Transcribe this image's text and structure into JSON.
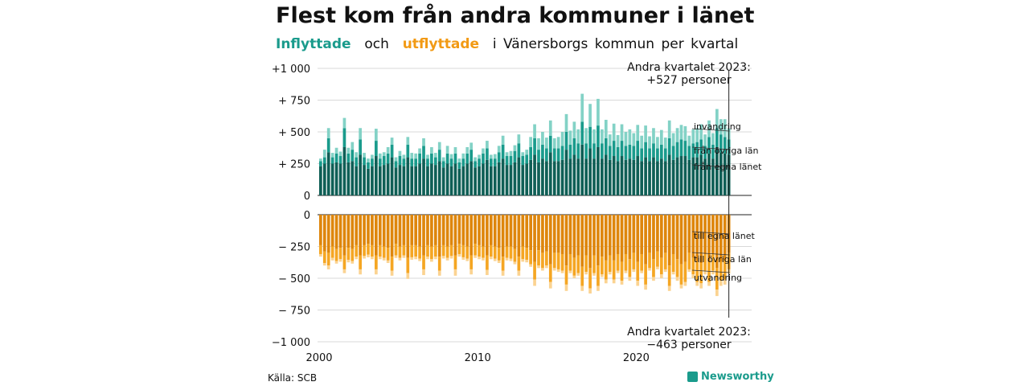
{
  "title": "Flest kom från andra kommuner i länet",
  "subtitle": {
    "in_word": "Inflyttade",
    "och": "och",
    "out_word": "utflyttade",
    "rest": "i Vänersborgs kommun per kvartal"
  },
  "source": "Källa: SCB",
  "brand": "Newsworthy",
  "colors": {
    "in_own": "#0f5f56",
    "in_other": "#1a9b8c",
    "in_imm": "#83d2c6",
    "out_own": "#de860c",
    "out_other": "#f5a623",
    "out_emi": "#fbd391"
  },
  "chart_data": {
    "type": "bar",
    "stacked": true,
    "x_start": "2000 Q1",
    "x_end": "2023 Q2",
    "x_ticks": [
      "2000",
      "2010",
      "2020"
    ],
    "y_ticks_top": [
      "+1 000",
      "+ 750",
      "+ 500",
      "+ 250",
      "0"
    ],
    "y_ticks_bottom": [
      "0",
      "− 250",
      "− 500",
      "− 750",
      "−1 000"
    ],
    "ylim_in": [
      0,
      1000
    ],
    "ylim_out": [
      -1000,
      0
    ],
    "annotation_top": {
      "line1": "Andra kvartalet 2023:",
      "line2": "+527 personer"
    },
    "annotation_bottom": {
      "line1": "Andra kvartalet 2023:",
      "line2": "−463 personer"
    },
    "series_labels_in": [
      "invandring",
      "från övriga län",
      "från egna länet"
    ],
    "series_labels_out": [
      "till egna länet",
      "till övriga län",
      "utvandring"
    ],
    "inflow_totals": [
      290,
      360,
      530,
      335,
      375,
      345,
      610,
      375,
      420,
      340,
      530,
      335,
      290,
      320,
      525,
      330,
      340,
      380,
      455,
      300,
      350,
      320,
      460,
      335,
      330,
      370,
      450,
      320,
      380,
      335,
      420,
      300,
      390,
      325,
      380,
      290,
      330,
      380,
      415,
      300,
      320,
      370,
      430,
      320,
      325,
      390,
      470,
      340,
      350,
      395,
      480,
      340,
      360,
      460,
      560,
      450,
      500,
      455,
      590,
      450,
      460,
      500,
      640,
      510,
      580,
      520,
      800,
      530,
      720,
      520,
      760,
      520,
      595,
      480,
      565,
      475,
      560,
      500,
      520,
      490,
      555,
      470,
      550,
      465,
      530,
      460,
      515,
      455,
      590,
      490,
      530,
      555,
      545,
      470,
      520,
      530,
      560,
      480,
      590,
      490,
      680,
      600,
      600,
      527
    ],
    "inflow_own": [
      230,
      250,
      340,
      250,
      260,
      250,
      380,
      260,
      270,
      230,
      320,
      240,
      210,
      230,
      310,
      230,
      240,
      250,
      300,
      220,
      240,
      230,
      300,
      230,
      230,
      250,
      290,
      230,
      250,
      240,
      270,
      220,
      250,
      230,
      250,
      210,
      230,
      250,
      270,
      220,
      230,
      250,
      280,
      230,
      230,
      260,
      290,
      240,
      240,
      260,
      300,
      240,
      250,
      280,
      320,
      260,
      290,
      270,
      340,
      270,
      270,
      280,
      360,
      290,
      320,
      290,
      400,
      290,
      370,
      290,
      380,
      290,
      320,
      280,
      310,
      270,
      310,
      280,
      290,
      280,
      310,
      270,
      300,
      270,
      300,
      270,
      290,
      270,
      320,
      280,
      300,
      310,
      310,
      280,
      300,
      300,
      320,
      290,
      330,
      290,
      380,
      340,
      330,
      320
    ],
    "inflow_other": [
      40,
      50,
      110,
      50,
      70,
      60,
      150,
      70,
      90,
      70,
      120,
      60,
      50,
      60,
      120,
      60,
      70,
      80,
      100,
      50,
      70,
      60,
      100,
      60,
      60,
      80,
      100,
      60,
      80,
      60,
      90,
      50,
      80,
      60,
      80,
      50,
      60,
      80,
      90,
      50,
      60,
      80,
      90,
      60,
      60,
      80,
      110,
      70,
      70,
      90,
      110,
      70,
      70,
      100,
      130,
      100,
      110,
      100,
      130,
      100,
      100,
      110,
      140,
      110,
      130,
      120,
      180,
      120,
      170,
      120,
      170,
      120,
      130,
      110,
      120,
      110,
      120,
      110,
      110,
      110,
      120,
      100,
      120,
      100,
      110,
      100,
      110,
      100,
      130,
      110,
      120,
      130,
      120,
      110,
      110,
      120,
      120,
      100,
      130,
      110,
      150,
      140,
      130,
      120
    ],
    "outflow_totals": [
      330,
      400,
      430,
      360,
      385,
      370,
      460,
      375,
      385,
      350,
      470,
      345,
      335,
      350,
      470,
      350,
      360,
      380,
      480,
      340,
      360,
      340,
      505,
      355,
      350,
      365,
      475,
      350,
      370,
      350,
      480,
      345,
      360,
      345,
      480,
      330,
      355,
      365,
      470,
      340,
      350,
      360,
      475,
      350,
      365,
      380,
      480,
      360,
      365,
      390,
      480,
      370,
      375,
      410,
      560,
      420,
      440,
      420,
      580,
      440,
      450,
      460,
      600,
      460,
      500,
      480,
      600,
      470,
      620,
      480,
      600,
      490,
      540,
      470,
      540,
      460,
      550,
      460,
      520,
      450,
      560,
      460,
      590,
      440,
      520,
      430,
      500,
      450,
      600,
      470,
      520,
      580,
      560,
      450,
      500,
      560,
      580,
      470,
      560,
      470,
      640,
      560,
      550,
      463
    ],
    "outflow_own": [
      240,
      290,
      300,
      250,
      270,
      260,
      320,
      260,
      270,
      240,
      320,
      240,
      230,
      240,
      320,
      240,
      250,
      260,
      330,
      230,
      250,
      240,
      340,
      240,
      240,
      250,
      320,
      240,
      250,
      240,
      330,
      240,
      250,
      240,
      320,
      230,
      240,
      250,
      320,
      230,
      240,
      250,
      320,
      240,
      250,
      260,
      330,
      250,
      250,
      270,
      330,
      250,
      260,
      280,
      370,
      280,
      300,
      290,
      390,
      300,
      300,
      310,
      400,
      310,
      340,
      320,
      410,
      320,
      420,
      320,
      400,
      330,
      360,
      320,
      360,
      310,
      370,
      310,
      350,
      300,
      370,
      310,
      390,
      300,
      350,
      290,
      340,
      300,
      400,
      310,
      350,
      390,
      370,
      300,
      340,
      370,
      380,
      310,
      370,
      310,
      420,
      370,
      360,
      300
    ],
    "outflow_other": [
      70,
      90,
      100,
      90,
      95,
      90,
      110,
      95,
      95,
      90,
      110,
      85,
      85,
      90,
      110,
      90,
      90,
      100,
      110,
      90,
      90,
      80,
      120,
      95,
      90,
      95,
      110,
      90,
      100,
      90,
      110,
      85,
      90,
      85,
      110,
      80,
      95,
      95,
      110,
      90,
      90,
      90,
      115,
      90,
      95,
      100,
      110,
      90,
      95,
      100,
      110,
      100,
      95,
      110,
      140,
      120,
      120,
      110,
      140,
      120,
      130,
      130,
      150,
      130,
      140,
      140,
      150,
      130,
      160,
      140,
      160,
      140,
      150,
      130,
      150,
      130,
      150,
      130,
      140,
      130,
      150,
      130,
      160,
      120,
      140,
      120,
      130,
      130,
      160,
      140,
      140,
      160,
      160,
      130,
      130,
      160,
      160,
      130,
      160,
      130,
      170,
      150,
      150,
      130
    ]
  }
}
